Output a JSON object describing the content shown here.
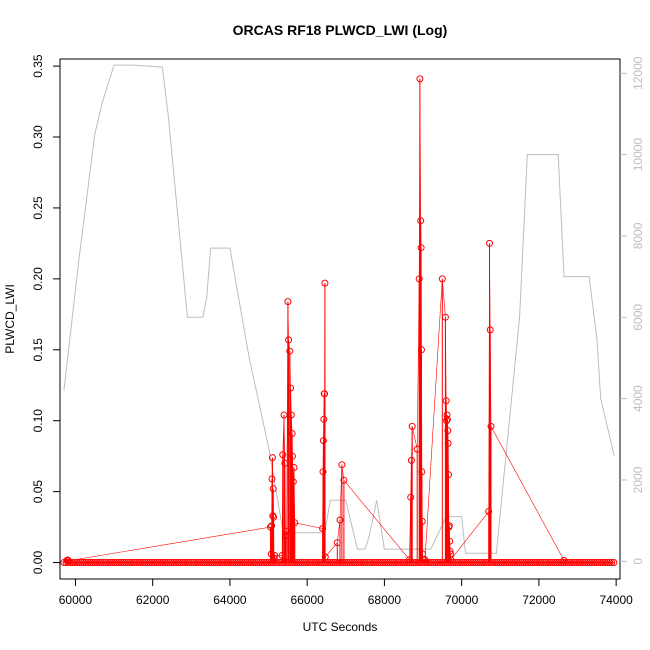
{
  "chart_data": {
    "type": "line",
    "title": "ORCAS RF18 PLWCD_LWI (Log)",
    "xlabel": "UTC Seconds",
    "ylabel": "PLWCD_LWI",
    "xlim": [
      59600,
      74100
    ],
    "ylim": [
      -0.0116,
      0.355
    ],
    "y2lim": [
      -435,
      12350
    ],
    "x_ticks": [
      60000,
      62000,
      64000,
      66000,
      68000,
      70000,
      72000,
      74000
    ],
    "y_ticks": [
      0.0,
      0.05,
      0.1,
      0.15,
      0.2,
      0.25,
      0.3,
      0.35
    ],
    "y2_ticks": [
      0,
      2000,
      4000,
      6000,
      8000,
      10000,
      12000
    ],
    "grid": false,
    "colors": {
      "primary": "#ff0000",
      "secondary": "#bdbdbd",
      "frame": "#000000"
    },
    "series": [
      {
        "axis": "right",
        "style": "line",
        "x": [
          59700,
          60100,
          60500,
          60700,
          61000,
          61500,
          62250,
          62400,
          62700,
          62900,
          63300,
          63400,
          63500,
          64000,
          64500,
          65000,
          65400,
          65500,
          65800,
          66000,
          66450,
          66600,
          67000,
          67200,
          67300,
          67500,
          67600,
          67800,
          68000,
          68250,
          68500,
          68800,
          69200,
          69600,
          70000,
          70100,
          70500,
          70900,
          71000,
          71500,
          71700,
          72000,
          72500,
          72650,
          73000,
          73300,
          73500,
          73600,
          73950
        ],
        "y": [
          4200,
          7500,
          10500,
          11300,
          12200,
          12200,
          12150,
          11000,
          8000,
          6000,
          6000,
          6500,
          7700,
          7700,
          5000,
          2800,
          600,
          700,
          700,
          700,
          700,
          1500,
          1500,
          700,
          300,
          300,
          600,
          1500,
          300,
          300,
          300,
          300,
          300,
          1100,
          1100,
          200,
          200,
          200,
          1200,
          6000,
          10000,
          10000,
          10000,
          7000,
          7000,
          7000,
          5500,
          4000,
          2600
        ]
      },
      {
        "axis": "left",
        "style": "line+points",
        "x": [
          59780,
          59800,
          59820,
          65050,
          65070,
          65080,
          65090,
          65100,
          65110,
          65120,
          65130,
          65140,
          65150,
          65160,
          65350,
          65370,
          65400,
          65420,
          65440,
          65470,
          65500,
          65520,
          65550,
          65570,
          65590,
          65610,
          65620,
          65640,
          65660,
          65680,
          66400,
          66410,
          66420,
          66430,
          66440,
          66450,
          66460,
          66470,
          66780,
          66850,
          66900,
          66950,
          68650,
          68680,
          68700,
          68720,
          68850,
          68900,
          68920,
          68940,
          68950,
          68960,
          68970,
          68980,
          68990,
          69000,
          69010,
          69050,
          69500,
          69580,
          69600,
          69610,
          69620,
          69630,
          69640,
          69650,
          69660,
          69670,
          69680,
          69690,
          69700,
          69710,
          69720,
          70700,
          70720,
          70740,
          70760,
          72650
        ],
        "y": [
          0.0015,
          0.0018,
          0.0012,
          0.025,
          0.006,
          0.026,
          0.059,
          0.074,
          0.033,
          0.052,
          0.032,
          0.003,
          0.003,
          0.005,
          0.005,
          0.076,
          0.104,
          0.07,
          0.019,
          0.022,
          0.184,
          0.157,
          0.149,
          0.123,
          0.104,
          0.091,
          0.075,
          0.057,
          0.067,
          0.028,
          0.024,
          0.064,
          0.086,
          0.101,
          0.119,
          0.119,
          0.197,
          0.004,
          0.014,
          0.03,
          0.069,
          0.058,
          0.002,
          0.046,
          0.072,
          0.096,
          0.08,
          0.2,
          0.341,
          0.241,
          0.222,
          0.15,
          0.064,
          0.029,
          0.006,
          0.002,
          0.002,
          0.002,
          0.2,
          0.173,
          0.114,
          0.1,
          0.104,
          0.101,
          0.093,
          0.084,
          0.062,
          0.025,
          0.026,
          0.015,
          0.008,
          0.006,
          0.002,
          0.036,
          0.225,
          0.164,
          0.096,
          0.0015
        ]
      }
    ],
    "baseline": {
      "axis": "left",
      "style": "points",
      "y": 0.0,
      "x_range": [
        59700,
        73950
      ]
    }
  }
}
